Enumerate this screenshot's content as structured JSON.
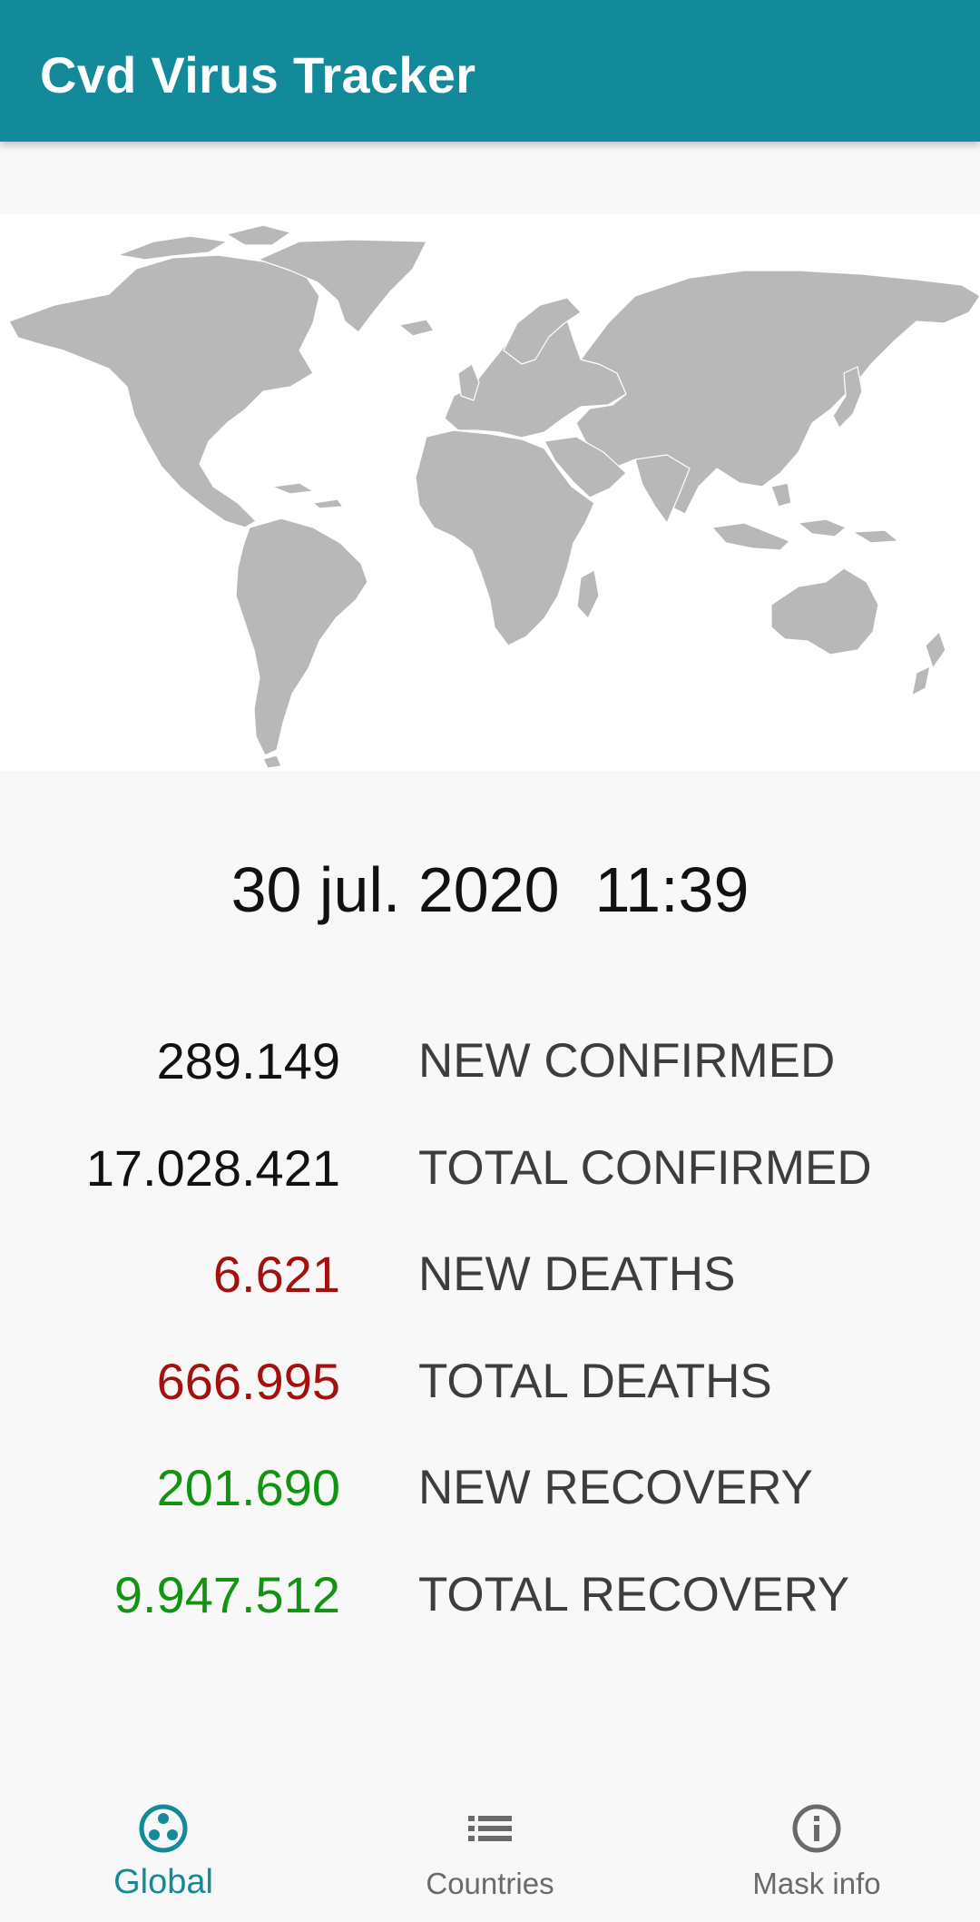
{
  "app_bar": {
    "title": "Cvd Virus Tracker"
  },
  "updated": {
    "date": "30 jul. 2020",
    "time": "11:39",
    "display": "30 jul. 2020  11:39"
  },
  "stats": [
    {
      "value": "289.149",
      "label": "NEW CONFIRMED",
      "color": "#111111"
    },
    {
      "value": "17.028.421",
      "label": "TOTAL CONFIRMED",
      "color": "#111111"
    },
    {
      "value": "6.621",
      "label": "NEW DEATHS",
      "color": "#a50f0f"
    },
    {
      "value": "666.995",
      "label": "TOTAL DEATHS",
      "color": "#a50f0f"
    },
    {
      "value": "201.690",
      "label": "NEW RECOVERY",
      "color": "#129412"
    },
    {
      "value": "9.947.512",
      "label": "TOTAL RECOVERY",
      "color": "#129412"
    }
  ],
  "bottom_nav": {
    "items": [
      {
        "label": "Global",
        "icon": "global-icon",
        "active": true
      },
      {
        "label": "Countries",
        "icon": "list-icon",
        "active": false
      },
      {
        "label": "Mask info",
        "icon": "info-icon",
        "active": false
      }
    ]
  },
  "colors": {
    "primary": "#138a99",
    "background": "#f8f8f8",
    "map_land": "#b8b8b8",
    "confirmed": "#111111",
    "deaths": "#a50f0f",
    "recovery": "#129412",
    "nav_inactive": "#6a6a6a"
  }
}
